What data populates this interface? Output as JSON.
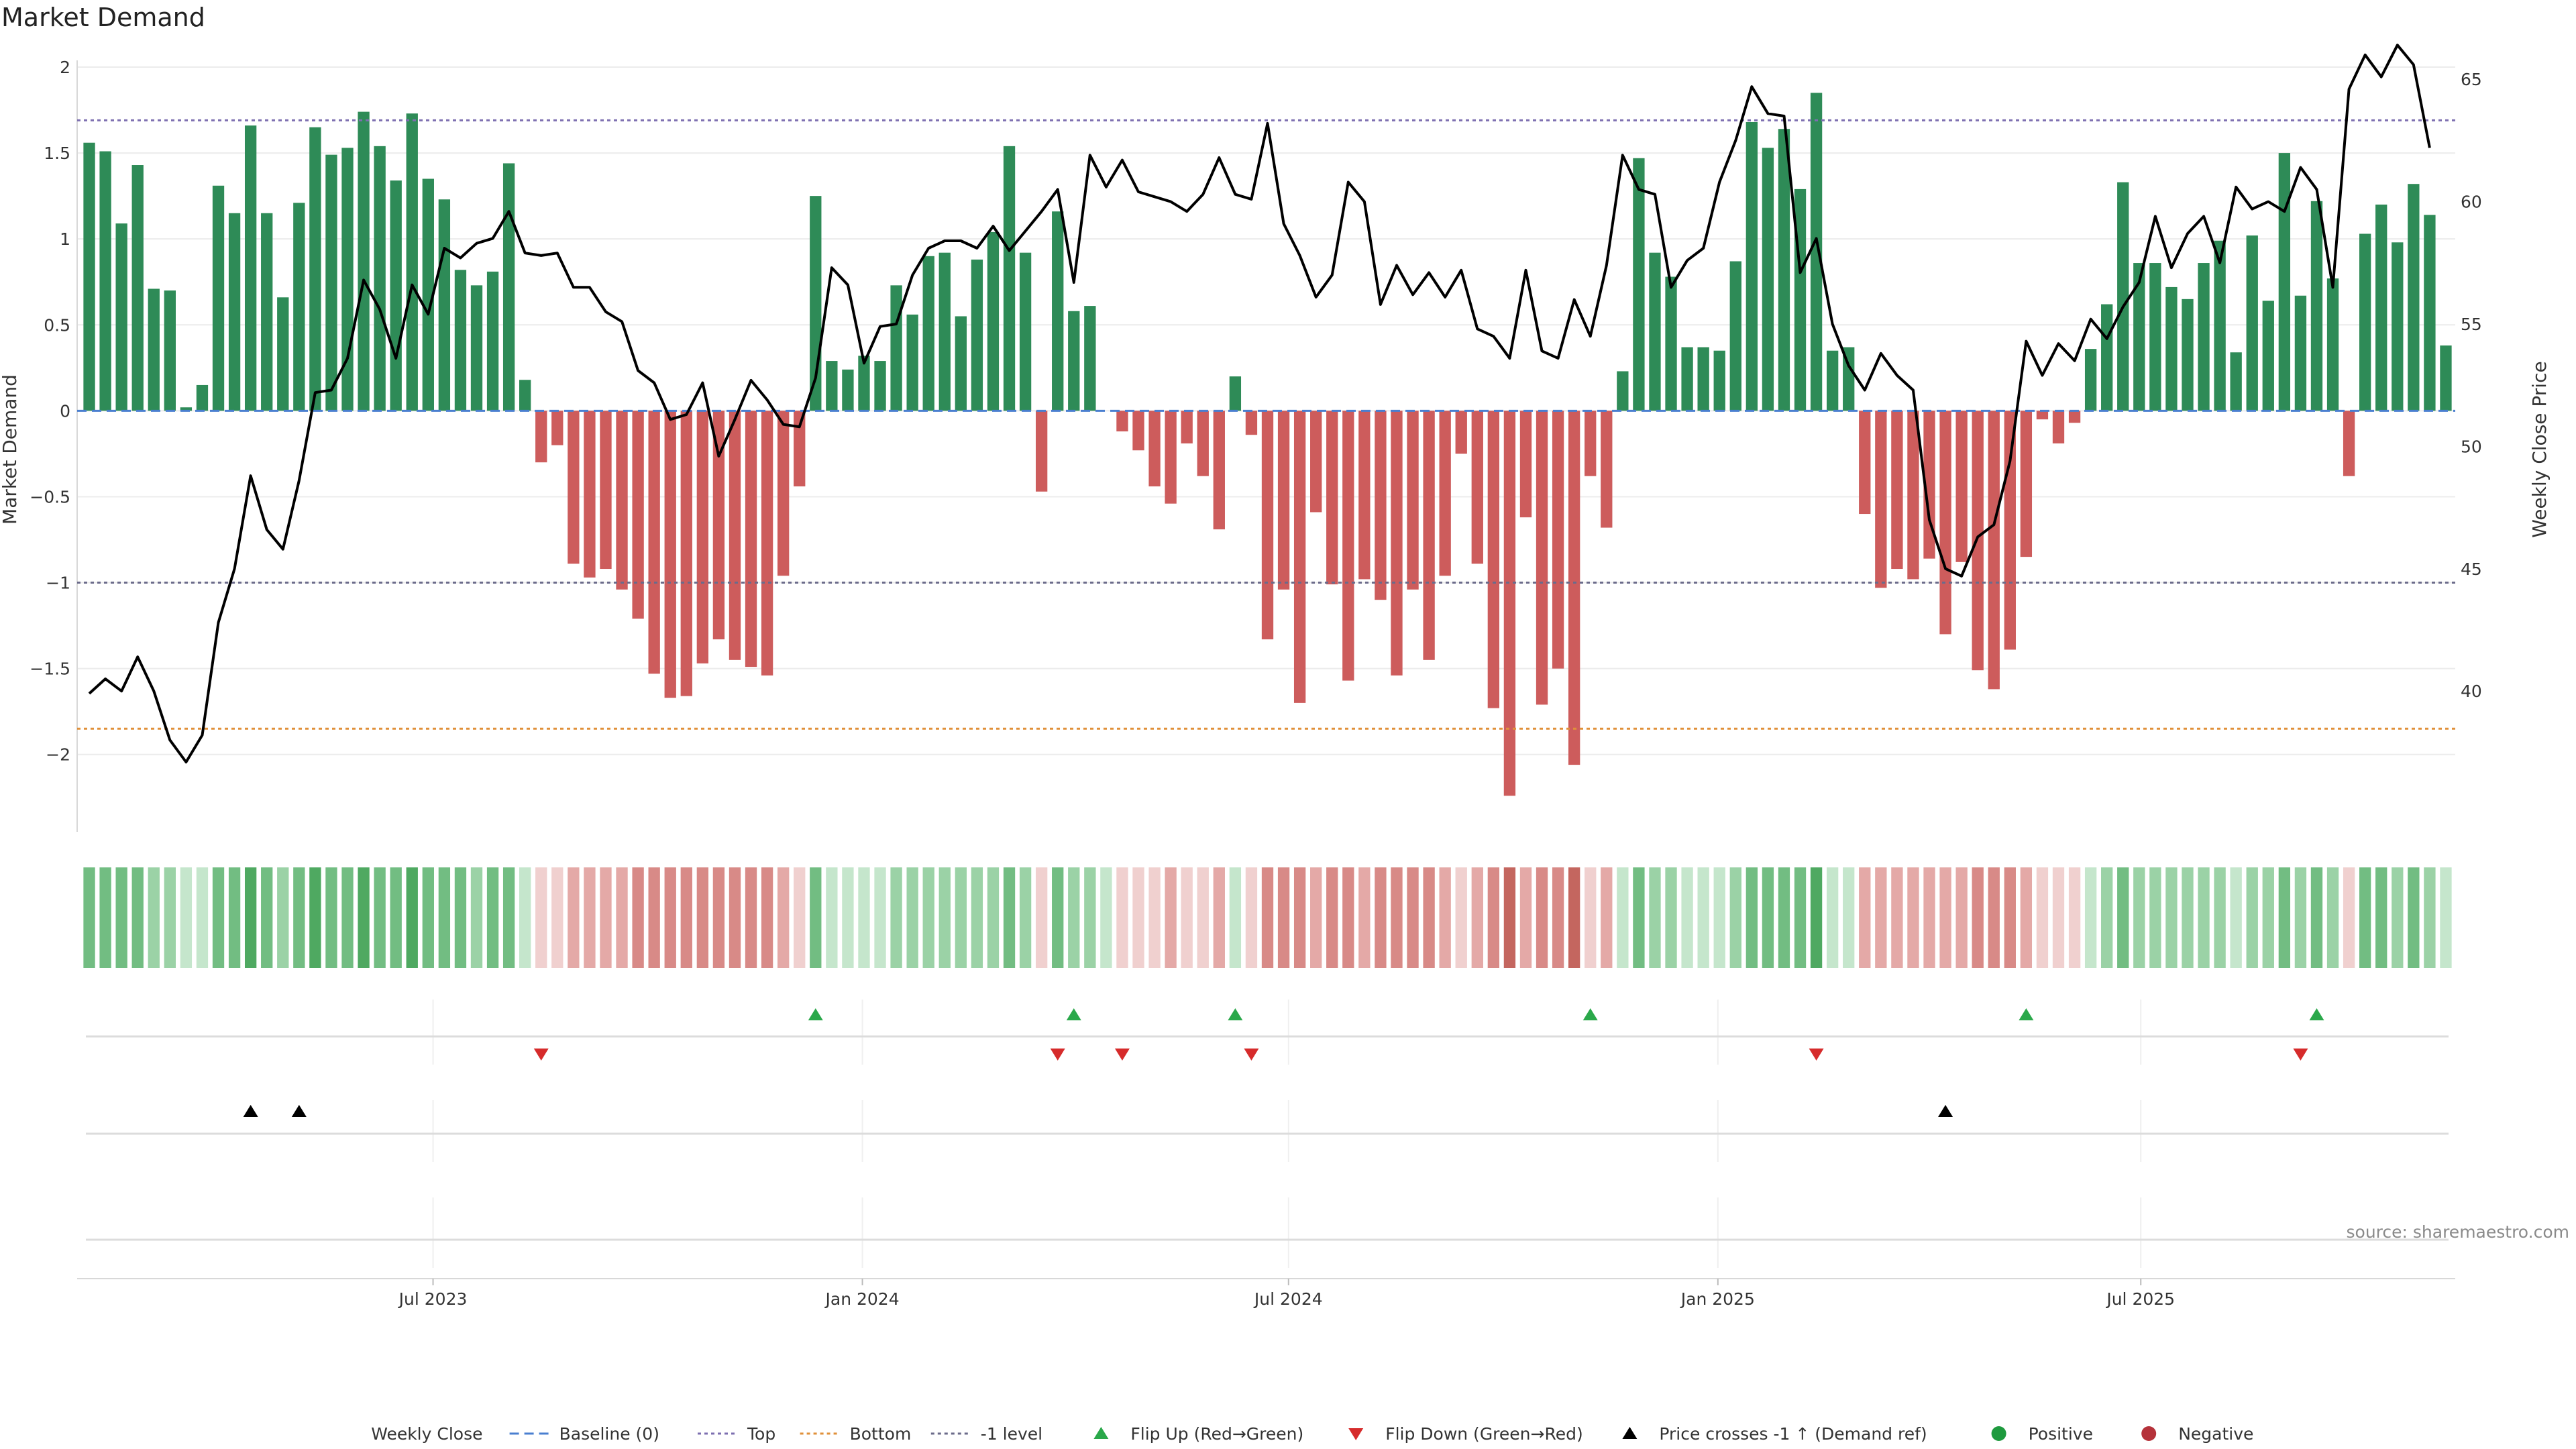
{
  "title": "Market Demand",
  "source": "source: sharemaestro.com",
  "colors": {
    "bar_pos": "#2e8b57",
    "bar_neg": "#cd5c5c",
    "line": "#000000",
    "baseline": "#4a7fd0",
    "top": "#7d6fb0",
    "bottom": "#e0903a",
    "minus1": "#6b6b8a",
    "flip_up": "#2aa84a",
    "flip_down": "#d62b2b",
    "cross": "#000000",
    "positive": "#1e9a3e",
    "negative": "#b5323a"
  },
  "chart_data": {
    "type": "bar+line",
    "title": "Market Demand",
    "ylabel": "Market Demand",
    "y2label": "Weekly Close Price",
    "ylim": [
      -2.45,
      2.0
    ],
    "y2lim": [
      34.25,
      65.5
    ],
    "yticks": [
      2,
      1.5,
      1,
      0.5,
      0,
      -0.5,
      -1,
      -1.5,
      -2
    ],
    "ytick_labels": [
      "2",
      "1.5",
      "1",
      "0.5",
      "0",
      "−0.5",
      "−1",
      "−1.5",
      "−2"
    ],
    "y2ticks": [
      40,
      45,
      50,
      55,
      60,
      65
    ],
    "y2tick_labels": [
      "40",
      "45",
      "50",
      "55",
      "60",
      "65"
    ],
    "xtick_labels": [
      "Jul 2023",
      "Jan 2024",
      "Jul 2024",
      "Jan 2025",
      "Jul 2025"
    ],
    "xtick_index": [
      21.3,
      47.9,
      74.3,
      100.9,
      127.1
    ],
    "reference_lines": {
      "top": 1.69,
      "bottom": -1.85,
      "minus1": -1.0,
      "baseline": 0
    },
    "demand": [
      1.56,
      1.51,
      1.09,
      1.43,
      0.71,
      0.7,
      0.02,
      0.15,
      1.31,
      1.15,
      1.66,
      1.15,
      0.66,
      1.21,
      1.65,
      1.49,
      1.53,
      1.74,
      1.54,
      1.34,
      1.73,
      1.35,
      1.23,
      0.82,
      0.73,
      0.81,
      1.44,
      0.18,
      -0.3,
      -0.2,
      -0.89,
      -0.97,
      -0.92,
      -1.04,
      -1.21,
      -1.53,
      -1.67,
      -1.66,
      -1.47,
      -1.33,
      -1.45,
      -1.49,
      -1.54,
      -0.96,
      -0.44,
      1.25,
      0.29,
      0.24,
      0.32,
      0.29,
      0.73,
      0.56,
      0.9,
      0.92,
      0.55,
      0.88,
      1.04,
      1.54,
      0.92,
      -0.47,
      1.16,
      0.58,
      0.61,
      0,
      -0.12,
      -0.23,
      -0.44,
      -0.54,
      -0.19,
      -0.38,
      -0.69,
      0.2,
      -0.14,
      -1.33,
      -1.04,
      -1.7,
      -0.59,
      -1.01,
      -1.57,
      -0.98,
      -1.1,
      -1.54,
      -1.04,
      -1.45,
      -0.96,
      -0.25,
      -0.89,
      -1.73,
      -2.24,
      -0.62,
      -1.71,
      -1.5,
      -2.06,
      -0.38,
      -0.68,
      0.23,
      1.47,
      0.92,
      0.78,
      0.37,
      0.37,
      0.35,
      0.87,
      1.68,
      1.53,
      1.64,
      1.29,
      1.85,
      0.35,
      0.37,
      -0.6,
      -1.03,
      -0.92,
      -0.98,
      -0.86,
      -1.3,
      -0.88,
      -1.51,
      -1.62,
      -1.39,
      -0.85,
      -0.05,
      -0.19,
      -0.07,
      0.36,
      0.62,
      1.33,
      0.86,
      0.86,
      0.72,
      0.65,
      0.86,
      0.99,
      0.34,
      1.02,
      0.64,
      1.5,
      0.67,
      1.22,
      0.77,
      -0.38,
      1.03,
      1.2,
      0.98,
      1.32,
      1.14,
      0.38
    ],
    "weekly_close": [
      39.9,
      40.5,
      40.0,
      41.4,
      40.0,
      38.0,
      37.1,
      38.2,
      42.8,
      45.0,
      48.8,
      46.6,
      45.8,
      48.6,
      52.2,
      52.3,
      53.6,
      56.8,
      55.6,
      53.6,
      56.6,
      55.4,
      58.1,
      57.7,
      58.3,
      58.5,
      59.6,
      57.9,
      57.8,
      57.9,
      56.5,
      56.5,
      55.5,
      55.1,
      53.1,
      52.6,
      51.1,
      51.3,
      52.6,
      49.6,
      51.1,
      52.7,
      51.9,
      50.9,
      50.8,
      52.8,
      57.3,
      56.6,
      53.4,
      54.9,
      55.0,
      57.0,
      58.1,
      58.4,
      58.4,
      58.1,
      59.0,
      58.0,
      58.8,
      59.6,
      60.5,
      56.7,
      61.9,
      60.6,
      61.7,
      60.4,
      60.2,
      60.0,
      59.6,
      60.3,
      61.8,
      60.3,
      60.1,
      63.2,
      59.1,
      57.8,
      56.1,
      57.0,
      60.8,
      60.0,
      55.8,
      57.4,
      56.2,
      57.1,
      56.1,
      57.2,
      54.8,
      54.5,
      53.6,
      57.2,
      53.9,
      53.6,
      56.0,
      54.5,
      57.4,
      61.9,
      60.5,
      60.3,
      56.5,
      57.6,
      58.1,
      60.8,
      62.5,
      64.7,
      63.6,
      63.5,
      57.1,
      58.5,
      55.0,
      53.3,
      52.3,
      53.8,
      52.9,
      52.3,
      47.0,
      45.0,
      44.7,
      46.3,
      46.8,
      49.4,
      54.3,
      52.9,
      54.2,
      53.5,
      55.2,
      54.4,
      55.7,
      56.7,
      59.4,
      57.3,
      58.7,
      59.4,
      57.5,
      60.6,
      59.7,
      60.0,
      59.6,
      61.4,
      60.5,
      56.5,
      64.6,
      66.0,
      65.1,
      66.4,
      65.6,
      62.2
    ],
    "strip_intensity": [
      2,
      2,
      2,
      2,
      1,
      1,
      0,
      0,
      2,
      2,
      3,
      2,
      1,
      2,
      3,
      2,
      2,
      3,
      2,
      2,
      3,
      2,
      2,
      2,
      1,
      2,
      2,
      0,
      0,
      0,
      1,
      1,
      1,
      1,
      2,
      2,
      2,
      2,
      2,
      2,
      2,
      2,
      2,
      1,
      0,
      2,
      0,
      0,
      0,
      0,
      1,
      1,
      1,
      1,
      1,
      1,
      1,
      2,
      1,
      0,
      2,
      1,
      1,
      0,
      0,
      0,
      0,
      1,
      0,
      0,
      1,
      0,
      0,
      2,
      2,
      2,
      1,
      2,
      2,
      1,
      2,
      2,
      2,
      2,
      1,
      0,
      1,
      2,
      3,
      1,
      2,
      2,
      3,
      0,
      1,
      0,
      2,
      1,
      1,
      0,
      0,
      0,
      1,
      2,
      2,
      2,
      2,
      3,
      0,
      0,
      1,
      1,
      1,
      1,
      1,
      1,
      1,
      2,
      2,
      2,
      1,
      0,
      0,
      0,
      0,
      1,
      2,
      1,
      1,
      1,
      1,
      1,
      1,
      0,
      1,
      1,
      2,
      1,
      2,
      1,
      0,
      2,
      2,
      1,
      2,
      1,
      0
    ],
    "flip_up_index": [
      45,
      61,
      71,
      93,
      120,
      138
    ],
    "flip_down_index": [
      28,
      60,
      64,
      72,
      107,
      137
    ],
    "price_cross_index": [
      10,
      13,
      115
    ]
  },
  "legend": [
    {
      "key": "weekly_close",
      "label": "Weekly Close"
    },
    {
      "key": "baseline",
      "label": "Baseline (0)"
    },
    {
      "key": "top",
      "label": "Top"
    },
    {
      "key": "bottom",
      "label": "Bottom"
    },
    {
      "key": "minus1",
      "label": "-1 level"
    },
    {
      "key": "flip_up",
      "label": "Flip Up (Red→Green)"
    },
    {
      "key": "flip_down",
      "label": "Flip Down (Green→Red)"
    },
    {
      "key": "cross",
      "label": "Price crosses -1 ↑ (Demand ref)"
    },
    {
      "key": "positive",
      "label": "Positive"
    },
    {
      "key": "negative",
      "label": "Negative"
    }
  ]
}
